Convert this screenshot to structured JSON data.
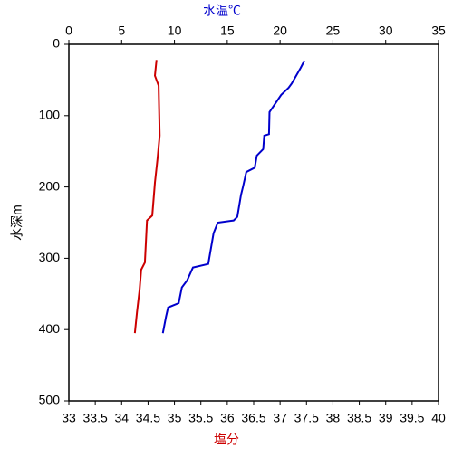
{
  "chart_data": {
    "type": "line",
    "x_label": "塩分",
    "x_label_color": "#cc0000",
    "x2_label": "水温℃",
    "x2_label_color": "#0000cc",
    "y_label": "水深m",
    "xlim": [
      33,
      40
    ],
    "xticks": [
      33,
      33.5,
      34,
      34.5,
      35,
      35.5,
      36,
      36.5,
      37,
      37.5,
      38,
      38.5,
      39,
      39.5,
      40
    ],
    "x2lim": [
      0,
      35
    ],
    "x2ticks": [
      0,
      5,
      10,
      15,
      20,
      25,
      30,
      35
    ],
    "ylim": [
      0,
      500
    ],
    "yticks": [
      0,
      100,
      200,
      300,
      400,
      500
    ],
    "y_inverted": true,
    "series": [
      {
        "color": "#0000cc",
        "axis": "x2",
        "x": [
          22.3,
          21.95,
          21.1,
          20.8,
          20.1,
          19.0,
          18.95,
          18.5,
          18.4,
          17.8,
          17.6,
          16.8,
          16.5,
          16.3,
          15.95,
          15.6,
          14.1,
          13.7,
          13.2,
          11.75,
          11.2,
          10.7,
          10.4,
          9.4,
          9.2,
          8.9
        ],
        "y": [
          23,
          33,
          55,
          61,
          71,
          95,
          126,
          128,
          147,
          156,
          173,
          179,
          199,
          211,
          242,
          247,
          250,
          265,
          308,
          313,
          331,
          341,
          363,
          369,
          382,
          405
        ]
      },
      {
        "color": "#cc0000",
        "axis": "x",
        "x": [
          34.66,
          34.63,
          34.7,
          34.72,
          34.68,
          34.63,
          34.58,
          34.48,
          34.44,
          34.37,
          34.34,
          34.29,
          34.25
        ],
        "y": [
          22,
          44,
          58,
          128,
          160,
          194,
          240,
          247,
          306,
          316,
          344,
          376,
          405
        ]
      }
    ]
  }
}
